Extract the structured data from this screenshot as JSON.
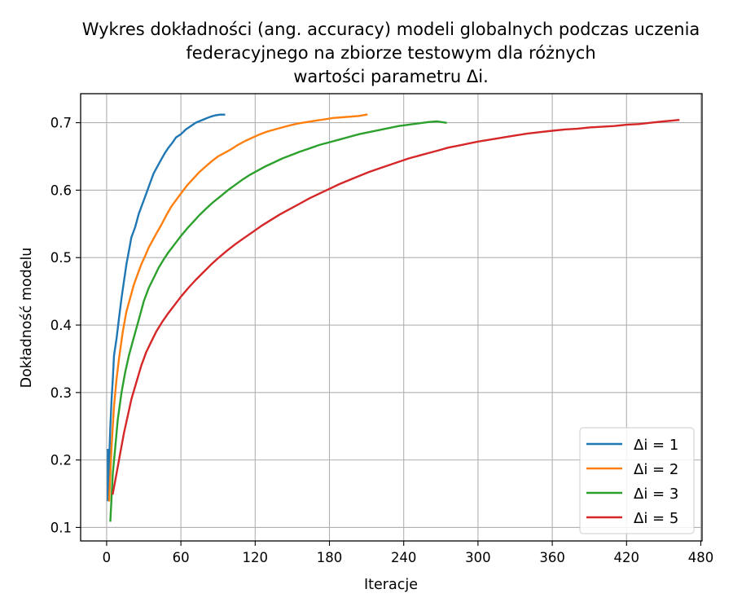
{
  "chart_data": {
    "type": "line",
    "title_lines": [
      "Wykres dokładności (ang. accuracy) modeli globalnych podczas uczenia",
      "federacyjnego na zbiorze testowym dla różnych",
      "wartości parametru Δi."
    ],
    "xlabel": "Iteracje",
    "ylabel": "Dokładność modelu",
    "xlim": [
      -21,
      481
    ],
    "ylim": [
      0.08,
      0.743
    ],
    "xticks": [
      0,
      60,
      120,
      180,
      240,
      300,
      360,
      420,
      480
    ],
    "yticks": [
      0.1,
      0.2,
      0.3,
      0.4,
      0.5,
      0.6,
      0.7
    ],
    "ytick_labels": [
      "0.1",
      "0.2",
      "0.3",
      "0.4",
      "0.5",
      "0.6",
      "0.7"
    ],
    "grid": true,
    "legend_position": "lower-right",
    "series": [
      {
        "name": "Δi = 1",
        "color": "#1f77b4",
        "points": [
          [
            1,
            0.215
          ],
          [
            1,
            0.14
          ],
          [
            2,
            0.2
          ],
          [
            3,
            0.25
          ],
          [
            4,
            0.29
          ],
          [
            5,
            0.32
          ],
          [
            6,
            0.355
          ],
          [
            8,
            0.38
          ],
          [
            10,
            0.41
          ],
          [
            12,
            0.44
          ],
          [
            14,
            0.465
          ],
          [
            16,
            0.49
          ],
          [
            18,
            0.51
          ],
          [
            20,
            0.53
          ],
          [
            23,
            0.545
          ],
          [
            26,
            0.565
          ],
          [
            29,
            0.58
          ],
          [
            32,
            0.595
          ],
          [
            35,
            0.61
          ],
          [
            38,
            0.625
          ],
          [
            41,
            0.635
          ],
          [
            44,
            0.645
          ],
          [
            47,
            0.655
          ],
          [
            50,
            0.663
          ],
          [
            53,
            0.67
          ],
          [
            56,
            0.678
          ],
          [
            60,
            0.683
          ],
          [
            64,
            0.69
          ],
          [
            68,
            0.695
          ],
          [
            72,
            0.7
          ],
          [
            76,
            0.703
          ],
          [
            80,
            0.706
          ],
          [
            84,
            0.709
          ],
          [
            88,
            0.711
          ],
          [
            92,
            0.712
          ],
          [
            95,
            0.712
          ]
        ]
      },
      {
        "name": "Δi = 2",
        "color": "#ff7f0e",
        "points": [
          [
            2,
            0.14
          ],
          [
            4,
            0.22
          ],
          [
            6,
            0.28
          ],
          [
            8,
            0.32
          ],
          [
            10,
            0.35
          ],
          [
            13,
            0.39
          ],
          [
            16,
            0.42
          ],
          [
            19,
            0.44
          ],
          [
            22,
            0.46
          ],
          [
            25,
            0.475
          ],
          [
            28,
            0.49
          ],
          [
            31,
            0.502
          ],
          [
            34,
            0.515
          ],
          [
            37,
            0.525
          ],
          [
            40,
            0.535
          ],
          [
            44,
            0.548
          ],
          [
            48,
            0.562
          ],
          [
            52,
            0.575
          ],
          [
            56,
            0.585
          ],
          [
            60,
            0.595
          ],
          [
            65,
            0.607
          ],
          [
            70,
            0.617
          ],
          [
            75,
            0.627
          ],
          [
            80,
            0.635
          ],
          [
            85,
            0.643
          ],
          [
            90,
            0.65
          ],
          [
            95,
            0.655
          ],
          [
            100,
            0.66
          ],
          [
            106,
            0.667
          ],
          [
            112,
            0.673
          ],
          [
            118,
            0.678
          ],
          [
            124,
            0.683
          ],
          [
            130,
            0.687
          ],
          [
            136,
            0.69
          ],
          [
            142,
            0.693
          ],
          [
            148,
            0.696
          ],
          [
            155,
            0.699
          ],
          [
            162,
            0.701
          ],
          [
            169,
            0.703
          ],
          [
            176,
            0.705
          ],
          [
            183,
            0.707
          ],
          [
            190,
            0.708
          ],
          [
            197,
            0.709
          ],
          [
            204,
            0.71
          ],
          [
            210,
            0.712
          ]
        ]
      },
      {
        "name": "Δi = 3",
        "color": "#2ca02c",
        "points": [
          [
            3,
            0.11
          ],
          [
            5,
            0.18
          ],
          [
            7,
            0.22
          ],
          [
            9,
            0.26
          ],
          [
            12,
            0.3
          ],
          [
            15,
            0.33
          ],
          [
            18,
            0.355
          ],
          [
            21,
            0.375
          ],
          [
            24,
            0.395
          ],
          [
            27,
            0.415
          ],
          [
            30,
            0.435
          ],
          [
            34,
            0.455
          ],
          [
            38,
            0.47
          ],
          [
            42,
            0.485
          ],
          [
            46,
            0.497
          ],
          [
            50,
            0.508
          ],
          [
            55,
            0.52
          ],
          [
            60,
            0.532
          ],
          [
            65,
            0.543
          ],
          [
            70,
            0.553
          ],
          [
            75,
            0.563
          ],
          [
            80,
            0.572
          ],
          [
            86,
            0.582
          ],
          [
            92,
            0.591
          ],
          [
            98,
            0.6
          ],
          [
            104,
            0.608
          ],
          [
            110,
            0.616
          ],
          [
            116,
            0.623
          ],
          [
            122,
            0.629
          ],
          [
            128,
            0.635
          ],
          [
            135,
            0.641
          ],
          [
            142,
            0.647
          ],
          [
            149,
            0.652
          ],
          [
            156,
            0.657
          ],
          [
            164,
            0.662
          ],
          [
            172,
            0.667
          ],
          [
            180,
            0.671
          ],
          [
            188,
            0.675
          ],
          [
            196,
            0.679
          ],
          [
            204,
            0.683
          ],
          [
            212,
            0.686
          ],
          [
            220,
            0.689
          ],
          [
            228,
            0.692
          ],
          [
            236,
            0.695
          ],
          [
            244,
            0.697
          ],
          [
            252,
            0.699
          ],
          [
            260,
            0.701
          ],
          [
            267,
            0.702
          ],
          [
            274,
            0.7
          ]
        ]
      },
      {
        "name": "Δi = 5",
        "color": "#d62728",
        "points": [
          [
            5,
            0.15
          ],
          [
            8,
            0.18
          ],
          [
            11,
            0.21
          ],
          [
            14,
            0.24
          ],
          [
            17,
            0.265
          ],
          [
            20,
            0.29
          ],
          [
            24,
            0.315
          ],
          [
            28,
            0.34
          ],
          [
            32,
            0.36
          ],
          [
            36,
            0.375
          ],
          [
            40,
            0.39
          ],
          [
            45,
            0.405
          ],
          [
            50,
            0.418
          ],
          [
            55,
            0.43
          ],
          [
            60,
            0.442
          ],
          [
            66,
            0.455
          ],
          [
            72,
            0.467
          ],
          [
            78,
            0.478
          ],
          [
            84,
            0.489
          ],
          [
            90,
            0.499
          ],
          [
            97,
            0.51
          ],
          [
            104,
            0.52
          ],
          [
            111,
            0.529
          ],
          [
            118,
            0.538
          ],
          [
            125,
            0.547
          ],
          [
            132,
            0.555
          ],
          [
            140,
            0.564
          ],
          [
            148,
            0.572
          ],
          [
            156,
            0.58
          ],
          [
            164,
            0.588
          ],
          [
            172,
            0.595
          ],
          [
            180,
            0.602
          ],
          [
            188,
            0.609
          ],
          [
            196,
            0.615
          ],
          [
            204,
            0.621
          ],
          [
            212,
            0.627
          ],
          [
            220,
            0.632
          ],
          [
            228,
            0.637
          ],
          [
            236,
            0.642
          ],
          [
            244,
            0.647
          ],
          [
            252,
            0.651
          ],
          [
            260,
            0.655
          ],
          [
            268,
            0.659
          ],
          [
            276,
            0.663
          ],
          [
            284,
            0.666
          ],
          [
            292,
            0.669
          ],
          [
            300,
            0.672
          ],
          [
            310,
            0.675
          ],
          [
            320,
            0.678
          ],
          [
            330,
            0.681
          ],
          [
            340,
            0.684
          ],
          [
            350,
            0.686
          ],
          [
            360,
            0.688
          ],
          [
            370,
            0.69
          ],
          [
            380,
            0.691
          ],
          [
            390,
            0.693
          ],
          [
            400,
            0.694
          ],
          [
            410,
            0.695
          ],
          [
            420,
            0.697
          ],
          [
            430,
            0.698
          ],
          [
            440,
            0.7
          ],
          [
            450,
            0.702
          ],
          [
            462,
            0.704
          ]
        ]
      }
    ]
  }
}
